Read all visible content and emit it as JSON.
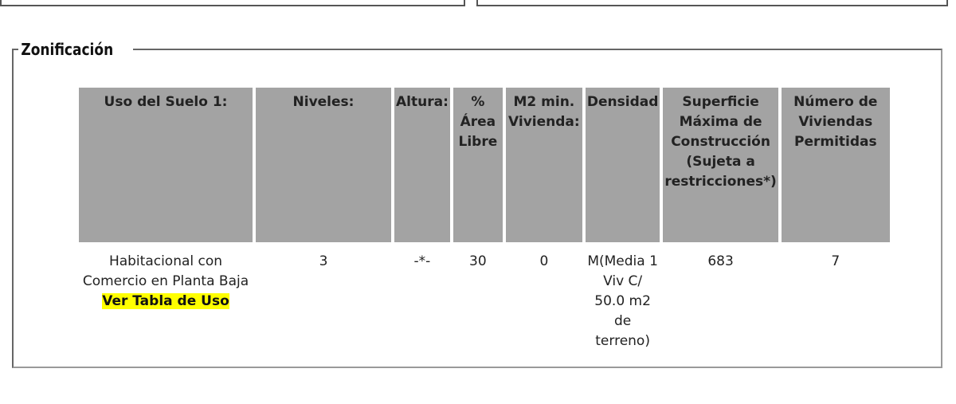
{
  "fieldset": {
    "legend": "Zonificación"
  },
  "table": {
    "headers": [
      "Uso del Suelo 1:",
      "Niveles:",
      "Altura:",
      "% Área Libre",
      "M2 min. Vivienda:",
      "Densidad",
      "Superficie Máxima de Construcción (Sujeta a restricciones*)",
      "Número de Viviendas Permitidas"
    ],
    "rows": [
      [
        "Habitacional con Comercio en Planta Baja",
        "3",
        "-*-",
        "30",
        "0",
        "M(Media 1 Viv C/ 50.0 m2 de terreno)",
        "683",
        "7"
      ]
    ],
    "link": "Ver Tabla de Uso"
  }
}
